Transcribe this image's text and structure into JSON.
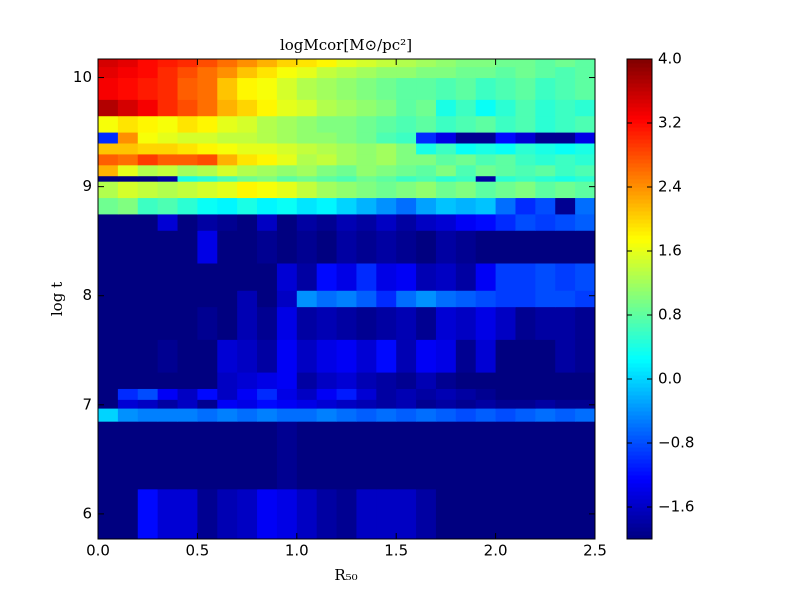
{
  "chart_data": {
    "type": "heatmap",
    "title": "logMcor[M⊙/pc²]",
    "xlabel": "R₅₀",
    "ylabel": "log t",
    "colormap": "jet",
    "x_edges": [
      0,
      0.1,
      0.2,
      0.3,
      0.4,
      0.5,
      0.6,
      0.7,
      0.8,
      0.9,
      1,
      1.1,
      1.2,
      1.3,
      1.4,
      1.5,
      1.6,
      1.7,
      1.8,
      1.9,
      2,
      2.1,
      2.2,
      2.3,
      2.4,
      2.5
    ],
    "y_edges": [
      5.77,
      6.23,
      6.85,
      6.97,
      7.05,
      7.15,
      7.3,
      7.6,
      7.9,
      8.05,
      8.3,
      8.6,
      8.75,
      8.9,
      9.05,
      9.1,
      9.2,
      9.3,
      9.4,
      9.5,
      9.65,
      9.8,
      10,
      10.1,
      10.17
    ],
    "z": [
      [
        -2,
        -2,
        -1.2,
        -1.5,
        -1.5,
        -1.9,
        -1.7,
        -1.6,
        -1.3,
        -1.4,
        -1.6,
        -1.8,
        -1.9,
        -1.6,
        -1.6,
        -1.6,
        -1.8,
        -2,
        -2,
        -2,
        -2,
        -2,
        -2,
        -2,
        -2
      ],
      [
        -2,
        -2,
        -2,
        -2,
        -2,
        -2,
        -2,
        -2,
        -2,
        -1.9,
        -2,
        -2,
        -2,
        -2,
        -2,
        -2,
        -2,
        -2,
        -2,
        -2,
        -2,
        -2,
        -2,
        -2,
        -2
      ],
      [
        0,
        -0.4,
        -0.5,
        -0.5,
        -0.5,
        -0.6,
        -0.5,
        -0.6,
        -0.5,
        -0.6,
        -0.6,
        -0.5,
        -0.6,
        -0.7,
        -0.6,
        -0.7,
        -0.6,
        -0.7,
        -0.8,
        -0.7,
        -0.8,
        -0.7,
        -0.6,
        -0.7,
        -0.6
      ],
      [
        -2,
        -1.5,
        -1.6,
        -1.8,
        -1.6,
        -1.9,
        -1.3,
        -1.4,
        -1.2,
        -1.3,
        -1.4,
        -1.5,
        -1.6,
        -1.7,
        -1.8,
        -1.7,
        -1.9,
        -1.8,
        -1.9,
        -1.8,
        -1.9,
        -1.9,
        -1.8,
        -1.9,
        -1.9
      ],
      [
        -2,
        -1,
        -0.8,
        -1.3,
        -1.6,
        -1.2,
        -1.6,
        -1.3,
        -1,
        -1.4,
        -1.6,
        -1.3,
        -1.1,
        -1.5,
        -1.8,
        -1.7,
        -1.8,
        -1.7,
        -1.8,
        -1.9,
        -2,
        -2,
        -2,
        -2,
        -2
      ],
      [
        -2,
        -2,
        -2,
        -2,
        -2,
        -2,
        -1.6,
        -1.5,
        -1.4,
        -1.3,
        -1.8,
        -1.6,
        -1.5,
        -1.7,
        -1.8,
        -1.9,
        -1.7,
        -1.9,
        -2,
        -2,
        -2,
        -2,
        -2,
        -2,
        -2
      ],
      [
        -2,
        -2,
        -2,
        -1.9,
        -2,
        -2,
        -1.5,
        -1.6,
        -1.8,
        -1.3,
        -1.6,
        -1.4,
        -1.3,
        -1.5,
        -1.2,
        -1.7,
        -1.3,
        -1.4,
        -1.9,
        -1.5,
        -2,
        -2,
        -2,
        -1.8,
        -1.9
      ],
      [
        -2,
        -2,
        -2,
        -2,
        -2,
        -1.9,
        -2,
        -1.7,
        -1.9,
        -1.4,
        -1.8,
        -1.7,
        -1.8,
        -1.9,
        -1.8,
        -1.7,
        -1.9,
        -1.5,
        -1.6,
        -1.4,
        -1.6,
        -1.9,
        -1.8,
        -1.8,
        -1.9
      ],
      [
        -2,
        -2,
        -2,
        -2,
        -2,
        -2,
        -2,
        -1.7,
        -2,
        -1.6,
        -0.4,
        -0.6,
        -0.5,
        -0.7,
        -1,
        -0.6,
        -0.4,
        -0.6,
        -0.7,
        -0.8,
        -0.9,
        -0.9,
        -0.8,
        -0.8,
        -0.9
      ],
      [
        -2,
        -2,
        -2,
        -2,
        -2,
        -2,
        -2,
        -2,
        -2,
        -1.5,
        -1.8,
        -1.2,
        -1.4,
        -1,
        -1.4,
        -1.3,
        -1.7,
        -1.6,
        -1.8,
        -1.3,
        -0.9,
        -0.9,
        -0.8,
        -0.9,
        -0.8
      ],
      [
        -2,
        -2,
        -2,
        -2,
        -2,
        -1.4,
        -2,
        -2,
        -1.9,
        -2,
        -1.9,
        -2,
        -1.8,
        -1.9,
        -1.8,
        -1.9,
        -2,
        -1.8,
        -1.9,
        -2,
        -2,
        -2,
        -2,
        -2,
        -2
      ],
      [
        -2,
        -2,
        -2,
        -1.5,
        -2,
        -1.8,
        -1.9,
        -2,
        -1.6,
        -2,
        -1.8,
        -1.9,
        -1.7,
        -1.8,
        -1.6,
        -1.8,
        -1.6,
        -1.5,
        -1.3,
        -1.2,
        -1,
        -0.8,
        -0.9,
        -0.8,
        -0.7
      ],
      [
        0.9,
        1,
        0.6,
        0.7,
        0.5,
        0.3,
        0.2,
        0.4,
        0.2,
        0.3,
        0.1,
        0.2,
        0,
        -0.2,
        -0.4,
        -0.6,
        -0.3,
        -0.1,
        -0.2,
        -0.1,
        -0.6,
        -1,
        -0.8,
        -1.9,
        -0.6
      ],
      [
        1.3,
        1.5,
        1.4,
        1.3,
        1.4,
        1.5,
        1.6,
        1.8,
        1.7,
        1.6,
        1.4,
        1.2,
        1.1,
        1,
        0.9,
        1,
        1.1,
        0.9,
        1,
        0.8,
        0.9,
        1,
        0.8,
        0.9,
        0.8
      ],
      [
        -2,
        -2,
        -2,
        -1.8,
        0.4,
        0.5,
        0.7,
        0.9,
        1,
        0.8,
        0.9,
        0.8,
        0.7,
        0.9,
        0.8,
        0.6,
        0.7,
        0.5,
        0.6,
        -1.8,
        0.5,
        0.6,
        0.5,
        0.4,
        0.5
      ],
      [
        2.2,
        1.6,
        1.3,
        1.4,
        1.2,
        1.3,
        1.5,
        1.3,
        1.2,
        1.1,
        1.2,
        1,
        0.9,
        1.1,
        1,
        0.9,
        0.8,
        1,
        0.7,
        0.9,
        0.8,
        0.7,
        0.8,
        0.6,
        0.7
      ],
      [
        2.7,
        2.6,
        2.9,
        2.7,
        2.7,
        2.8,
        2.2,
        1.9,
        1.8,
        1.6,
        1.3,
        1.4,
        1.2,
        1.1,
        1.2,
        1,
        1,
        0.8,
        0.9,
        0.7,
        0.8,
        0.6,
        0.5,
        0.6,
        0.5
      ],
      [
        2.1,
        2.1,
        2,
        2,
        1.9,
        1.8,
        1.7,
        1.6,
        1.6,
        1.5,
        1.4,
        1.3,
        1.2,
        1.1,
        1.2,
        1,
        0.4,
        0.6,
        0.3,
        0.4,
        0.3,
        0.5,
        0.4,
        0.3,
        0.4
      ],
      [
        -1,
        2.4,
        1.7,
        1.6,
        1.5,
        1.5,
        1.4,
        1.4,
        1.3,
        1.2,
        1.1,
        1.1,
        1,
        0.9,
        0.7,
        0.6,
        -1,
        -1.4,
        -1.9,
        -1.9,
        -1.2,
        -1.5,
        -1.9,
        -1.9,
        -1.4
      ],
      [
        1.7,
        1.9,
        1.8,
        1.7,
        1.9,
        1.8,
        1.6,
        1.5,
        1.3,
        1.2,
        1.1,
        1,
        1,
        0.9,
        0.8,
        0.7,
        0.8,
        0.6,
        0.7,
        0.8,
        0.6,
        0.7,
        0.5,
        0.6,
        0.7
      ],
      [
        3.7,
        3.5,
        3.3,
        3,
        2.8,
        2.6,
        2.2,
        2,
        1.8,
        1.6,
        1.5,
        1.3,
        1.2,
        1.1,
        1,
        0.8,
        0.9,
        0.4,
        0.6,
        0.3,
        0.5,
        0.7,
        0.5,
        0.6,
        0.5
      ],
      [
        3.3,
        3.2,
        3.1,
        3,
        2.7,
        2.6,
        2.1,
        1.8,
        1.7,
        1.5,
        1.3,
        1.2,
        1.1,
        1,
        0.9,
        0.8,
        0.8,
        0.7,
        0.8,
        0.6,
        0.7,
        0.8,
        0.6,
        0.7,
        0.8
      ],
      [
        3.4,
        3.3,
        3.2,
        3,
        2.8,
        2.6,
        2.4,
        2.1,
        1.9,
        1.7,
        1.6,
        1.4,
        1.3,
        1.2,
        1.1,
        1.1,
        1,
        1,
        0.9,
        0.9,
        0.8,
        0.9,
        0.8,
        0.7,
        0.8
      ],
      [
        3.5,
        3.4,
        3.2,
        3.1,
        3,
        2.8,
        2.6,
        2.4,
        2.2,
        2,
        1.9,
        1.8,
        1.6,
        1.5,
        1.4,
        1.3,
        1.2,
        1.1,
        1,
        1,
        0.9,
        0.9,
        0.8,
        0.9,
        0.8
      ]
    ],
    "xlim": [
      0,
      2.5
    ],
    "ylim": [
      5.77,
      10.17
    ],
    "xticks": [
      {
        "value": 0,
        "label": "0.0"
      },
      0.5,
      {
        "value": 1,
        "label": "1.0"
      },
      1.5,
      {
        "value": 2,
        "label": "2.0"
      },
      2.5
    ],
    "yticks": [
      6,
      7,
      8,
      9,
      10
    ],
    "clim": [
      -2,
      4
    ],
    "cticks": [
      {
        "value": 4,
        "label": "4.0"
      },
      3.2,
      2.4,
      1.6,
      0.8,
      {
        "value": 0,
        "label": "0.0"
      },
      {
        "value": -0.8,
        "label": "−0.8"
      },
      {
        "value": -1.6,
        "label": "−1.6"
      }
    ]
  }
}
